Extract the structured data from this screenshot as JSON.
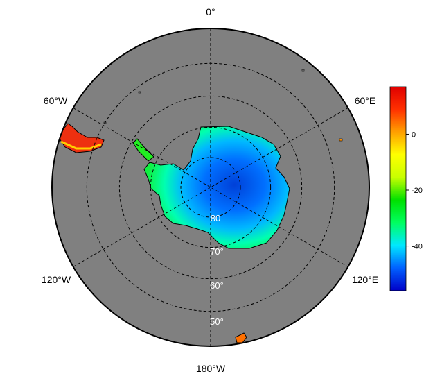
{
  "map": {
    "projection": "south-polar-stereographic",
    "ocean_color": "#808080",
    "coast_color": "#000000",
    "grid_style": "dashed",
    "longitude_labels": {
      "top": "0°",
      "upper_left": "60°W",
      "upper_right": "60°E",
      "lower_left": "120°W",
      "lower_right": "120°E",
      "bottom": "180°W"
    },
    "latitude_labels": [
      "80",
      "70°",
      "60°",
      "50°"
    ],
    "latitude_circles": [
      80,
      70,
      60,
      50
    ],
    "outer_latitude": 40
  },
  "colorbar": {
    "min": -56,
    "max": 17,
    "ticks": [
      {
        "value": 0,
        "label": "0"
      },
      {
        "value": -20,
        "label": "-20"
      },
      {
        "value": -40,
        "label": "-40"
      }
    ],
    "colors": [
      "#0000c8",
      "#0060ff",
      "#00e8ff",
      "#00ff60",
      "#00e000",
      "#c8ff00",
      "#ffff00",
      "#ffa000",
      "#ff3000",
      "#e00000"
    ]
  }
}
